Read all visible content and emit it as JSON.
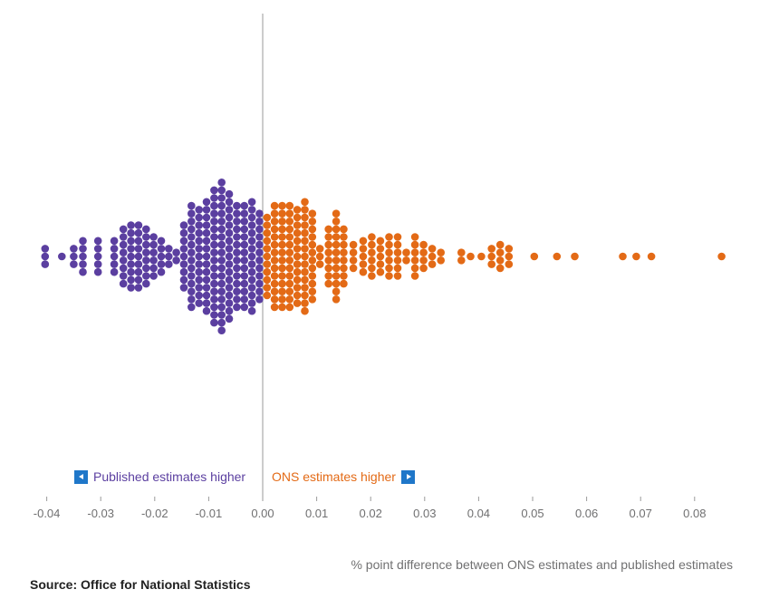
{
  "chart_data": {
    "type": "scatter",
    "subtype": "beeswarm",
    "xlabel": "% point difference between ONS estimates and published estimates",
    "xlim": [
      -0.0425,
      0.087
    ],
    "xticks": [
      "-0.04",
      "-0.03",
      "-0.02",
      "-0.01",
      "0.00",
      "0.01",
      "0.02",
      "0.03",
      "0.04",
      "0.05",
      "0.06",
      "0.07",
      "0.08"
    ],
    "xtick_values": [
      -0.04,
      -0.03,
      -0.02,
      -0.01,
      0,
      0.01,
      0.02,
      0.03,
      0.04,
      0.05,
      0.06,
      0.07,
      0.08
    ],
    "zero_line": 0,
    "series": [
      {
        "name": "Published estimates higher",
        "color": "#5b3fa0",
        "count_by_bin": [
          [
            -0.0403,
            3
          ],
          [
            -0.0372,
            1
          ],
          [
            -0.035,
            3
          ],
          [
            -0.0333,
            5
          ],
          [
            -0.0305,
            5
          ],
          [
            -0.0275,
            5
          ],
          [
            -0.0258,
            8
          ],
          [
            -0.0244,
            9
          ],
          [
            -0.023,
            9
          ],
          [
            -0.0216,
            8
          ],
          [
            -0.0202,
            6
          ],
          [
            -0.0188,
            5
          ],
          [
            -0.0174,
            3
          ],
          [
            -0.016,
            2
          ],
          [
            -0.0146,
            9
          ],
          [
            -0.0132,
            14
          ],
          [
            -0.0118,
            13
          ],
          [
            -0.0104,
            15
          ],
          [
            -0.009,
            18
          ],
          [
            -0.0076,
            20
          ],
          [
            -0.0062,
            17
          ],
          [
            -0.0048,
            14
          ],
          [
            -0.0034,
            14
          ],
          [
            -0.002,
            15
          ],
          [
            -0.0006,
            12
          ]
        ]
      },
      {
        "name": "ONS estimates higher",
        "color": "#e36a16",
        "count_by_bin": [
          [
            0.0008,
            11
          ],
          [
            0.0022,
            14
          ],
          [
            0.0036,
            14
          ],
          [
            0.005,
            14
          ],
          [
            0.0064,
            13
          ],
          [
            0.0078,
            15
          ],
          [
            0.0092,
            12
          ],
          [
            0.0106,
            3
          ],
          [
            0.0122,
            8
          ],
          [
            0.0136,
            12
          ],
          [
            0.015,
            8
          ],
          [
            0.0168,
            4
          ],
          [
            0.0186,
            5
          ],
          [
            0.0202,
            6
          ],
          [
            0.0218,
            5
          ],
          [
            0.0234,
            6
          ],
          [
            0.025,
            6
          ],
          [
            0.0266,
            2
          ],
          [
            0.0282,
            6
          ],
          [
            0.0298,
            4
          ],
          [
            0.0314,
            3
          ],
          [
            0.033,
            2
          ],
          [
            0.0368,
            2
          ],
          [
            0.0385,
            1
          ],
          [
            0.0405,
            1
          ],
          [
            0.0424,
            3
          ],
          [
            0.044,
            4
          ],
          [
            0.0456,
            3
          ],
          [
            0.0503,
            1
          ],
          [
            0.0545,
            1
          ],
          [
            0.0578,
            1
          ],
          [
            0.0667,
            1
          ],
          [
            0.0692,
            1
          ],
          [
            0.072,
            1
          ],
          [
            0.085,
            1
          ]
        ]
      }
    ],
    "annotations": {
      "left": "Published estimates higher",
      "right": "ONS estimates higher"
    },
    "source": "Source: Office for National Statistics"
  },
  "colors": {
    "published": "#5b3fa0",
    "ons": "#e36a16",
    "axis": "#9a9a9a",
    "arrow": "#1f77c9",
    "tick": "#707071"
  },
  "icons": {
    "left_arrow": "left-arrow-icon",
    "right_arrow": "right-arrow-icon"
  }
}
